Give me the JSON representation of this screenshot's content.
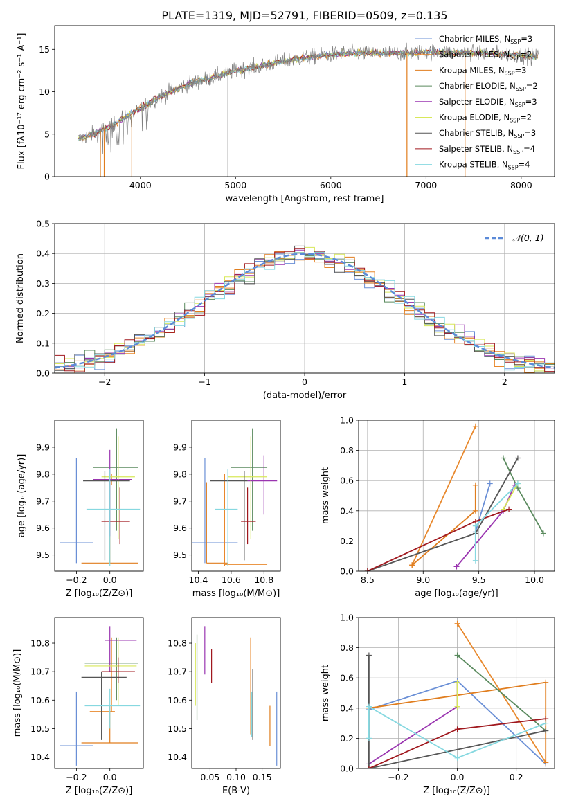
{
  "figure": {
    "title": "PLATE=1319, MJD=52791, FIBERID=0509, z=0.135"
  },
  "models": [
    {
      "name": "Chabrier MILES",
      "nssp": "3",
      "color": "#6a8fd6"
    },
    {
      "name": "Salpeter MILES",
      "nssp": "2",
      "color": "#e8882c"
    },
    {
      "name": "Kroupa MILES",
      "nssp": "3",
      "color": "#e07d1e"
    },
    {
      "name": "Chabrier ELODIE",
      "nssp": "2",
      "color": "#5a8a5e"
    },
    {
      "name": "Salpeter ELODIE",
      "nssp": "3",
      "color": "#9a35b0"
    },
    {
      "name": "Kroupa ELODIE",
      "nssp": "2",
      "color": "#d8e85a"
    },
    {
      "name": "Chabrier STELIB",
      "nssp": "3",
      "color": "#555555"
    },
    {
      "name": "Salpeter STELIB",
      "nssp": "4",
      "color": "#a0181e"
    },
    {
      "name": "Kroupa STELIB",
      "nssp": "4",
      "color": "#86d8e0"
    }
  ],
  "chart_data": [
    {
      "id": "spectrum",
      "type": "line",
      "xlabel": "wavelength [Angstrom, rest frame]",
      "ylabel": "Flux [fλ10⁻¹⁷ erg cm⁻² s⁻¹ A⁻¹]",
      "xlim": [
        3100,
        8350
      ],
      "ylim": [
        0,
        17.8
      ],
      "xticks": [
        4000,
        5000,
        6000,
        7000,
        8000
      ],
      "yticks": [
        0,
        5,
        10,
        15
      ],
      "continuum": {
        "x": [
          3350,
          3500,
          3700,
          3900,
          4000,
          4200,
          4500,
          4800,
          5000,
          5300,
          5600,
          6000,
          6300,
          6600,
          7000,
          7300,
          7600,
          8000,
          8180
        ],
        "y": [
          4.4,
          5.0,
          6.0,
          7.4,
          8.0,
          9.4,
          10.9,
          11.8,
          12.5,
          13.1,
          13.8,
          14.4,
          14.6,
          14.5,
          14.7,
          14.6,
          14.6,
          14.3,
          14.1
        ]
      },
      "dips": [
        {
          "x": 3580,
          "y": 0
        },
        {
          "x": 3620,
          "y": 0
        },
        {
          "x": 3910,
          "y": 0
        },
        {
          "x": 4920,
          "y": 0
        },
        {
          "x": 6800,
          "y": 0
        },
        {
          "x": 7410,
          "y": 0
        }
      ],
      "legend_position": "top-right"
    },
    {
      "id": "residual-histogram",
      "type": "line",
      "xlabel": "(data-model)/error",
      "ylabel": "Normed distribution",
      "xlim": [
        -2.5,
        2.5
      ],
      "ylim": [
        0,
        0.5
      ],
      "xticks": [
        -2,
        -1,
        0,
        1,
        2
      ],
      "yticks": [
        0.0,
        0.1,
        0.2,
        0.3,
        0.4,
        0.5
      ],
      "reference": {
        "name": "𝒩(0, 1)",
        "mu": 0,
        "sigma": 1,
        "color": "#5b8ad8"
      },
      "bin_width": 0.1,
      "grid": true,
      "legend_position": "top-right"
    },
    {
      "id": "age-vs-Z",
      "type": "scatter",
      "xlabel": "Z [log₁₀(Z/Z⊙)]",
      "ylabel": "age  [log₁₀(age/yr)]",
      "xlim": [
        -0.33,
        0.2
      ],
      "ylim": [
        9.44,
        10.0
      ],
      "xticks": [
        -0.2,
        0.0
      ],
      "xticklabels": [
        "−0.2",
        "0.0"
      ],
      "yticks": [
        9.5,
        9.6,
        9.7,
        9.8,
        9.9
      ],
      "points": [
        {
          "x": -0.2,
          "xlo": -0.3,
          "xhi": -0.1,
          "y": 9.545,
          "ylo": 9.47,
          "yhi": 9.86,
          "model": 0
        },
        {
          "x": 0.0,
          "xlo": -0.17,
          "xhi": 0.17,
          "y": 9.47,
          "ylo": 9.47,
          "yhi": 9.77,
          "model": 2
        },
        {
          "x": 0.01,
          "xlo": -0.02,
          "xhi": 0.04,
          "y": 9.78,
          "ylo": 9.76,
          "yhi": 9.8,
          "model": 1
        },
        {
          "x": 0.04,
          "xlo": -0.1,
          "xhi": 0.17,
          "y": 9.825,
          "ylo": 9.59,
          "yhi": 9.97,
          "model": 3
        },
        {
          "x": 0.0,
          "xlo": -0.1,
          "xhi": 0.13,
          "y": 9.78,
          "ylo": 9.57,
          "yhi": 9.89,
          "model": 4
        },
        {
          "x": 0.05,
          "xlo": -0.05,
          "xhi": 0.15,
          "y": 9.79,
          "ylo": 9.56,
          "yhi": 9.94,
          "model": 5
        },
        {
          "x": -0.03,
          "xlo": -0.16,
          "xhi": 0.12,
          "y": 9.775,
          "ylo": 9.48,
          "yhi": 9.81,
          "model": 6
        },
        {
          "x": 0.06,
          "xlo": -0.05,
          "xhi": 0.12,
          "y": 9.625,
          "ylo": 9.54,
          "yhi": 9.75,
          "model": 7
        },
        {
          "x": 0.0,
          "xlo": -0.14,
          "xhi": 0.18,
          "y": 9.67,
          "ylo": 9.46,
          "yhi": 9.82,
          "model": 8
        }
      ]
    },
    {
      "id": "age-vs-mass",
      "type": "scatter",
      "xlabel": "mass [log₁₀(M/M⊙)]",
      "ylabel": "",
      "xlim": [
        10.36,
        10.9
      ],
      "ylim": [
        9.44,
        10.0
      ],
      "xticks": [
        10.4,
        10.6,
        10.8
      ],
      "yticks": [
        9.5,
        9.6,
        9.7,
        9.8,
        9.9
      ],
      "points": [
        {
          "x": 10.44,
          "xlo": 10.36,
          "xhi": 10.64,
          "y": 9.545,
          "ylo": 9.47,
          "yhi": 9.86,
          "model": 0
        },
        {
          "x": 10.45,
          "xlo": 10.45,
          "xhi": 10.58,
          "y": 9.47,
          "ylo": 9.47,
          "yhi": 9.77,
          "model": 2
        },
        {
          "x": 10.56,
          "xlo": 10.56,
          "xhi": 10.82,
          "y": 9.465,
          "ylo": 9.46,
          "yhi": 9.8,
          "model": 1
        },
        {
          "x": 10.73,
          "xlo": 10.6,
          "xhi": 10.82,
          "y": 9.825,
          "ylo": 9.59,
          "yhi": 9.97,
          "model": 3
        },
        {
          "x": 10.8,
          "xlo": 10.7,
          "xhi": 10.88,
          "y": 9.775,
          "ylo": 9.65,
          "yhi": 9.87,
          "model": 4
        },
        {
          "x": 10.72,
          "xlo": 10.58,
          "xhi": 10.82,
          "y": 9.79,
          "ylo": 9.56,
          "yhi": 9.94,
          "model": 5
        },
        {
          "x": 10.68,
          "xlo": 10.47,
          "xhi": 10.7,
          "y": 9.775,
          "ylo": 9.48,
          "yhi": 9.81,
          "model": 6
        },
        {
          "x": 10.7,
          "xlo": 10.66,
          "xhi": 10.75,
          "y": 9.625,
          "ylo": 9.54,
          "yhi": 9.75,
          "model": 7
        },
        {
          "x": 10.58,
          "xlo": 10.5,
          "xhi": 10.64,
          "y": 9.67,
          "ylo": 9.46,
          "yhi": 9.82,
          "model": 8
        }
      ]
    },
    {
      "id": "mass-weight-vs-age",
      "type": "line",
      "xlabel": "age  [log₁₀(age/yr)]",
      "ylabel": "mass weight",
      "xlim": [
        8.42,
        10.18
      ],
      "ylim": [
        0,
        1
      ],
      "xticks": [
        8.5,
        9.0,
        9.5,
        10.0
      ],
      "yticks": [
        0.0,
        0.2,
        0.4,
        0.6,
        0.8,
        1.0
      ],
      "grid": true,
      "series": [
        {
          "model": 0,
          "x": [
            9.47,
            9.6
          ],
          "y": [
            0.26,
            0.58
          ]
        },
        {
          "model": 1,
          "x": [
            8.9,
            9.47
          ],
          "y": [
            0.04,
            0.96
          ]
        },
        {
          "model": 2,
          "x": [
            8.9,
            9.47,
            9.47
          ],
          "y": [
            0.04,
            0.4,
            0.57
          ]
        },
        {
          "model": 3,
          "x": [
            9.72,
            9.85,
            10.08
          ],
          "y": [
            0.75,
            0.55,
            0.25
          ]
        },
        {
          "model": 4,
          "x": [
            9.3,
            9.72,
            9.82
          ],
          "y": [
            0.03,
            0.4,
            0.57
          ]
        },
        {
          "model": 5,
          "x": [
            9.72,
            9.85
          ],
          "y": [
            0.41,
            0.58
          ]
        },
        {
          "model": 6,
          "x": [
            8.5,
            9.47,
            9.85
          ],
          "y": [
            0.0,
            0.25,
            0.75
          ]
        },
        {
          "model": 7,
          "x": [
            8.5,
            9.47,
            9.77
          ],
          "y": [
            0.0,
            0.33,
            0.41
          ]
        },
        {
          "model": 8,
          "x": [
            9.47,
            9.47,
            9.85
          ],
          "y": [
            0.07,
            0.3,
            0.58
          ]
        }
      ]
    },
    {
      "id": "mass-vs-Z",
      "type": "scatter",
      "xlabel": "Z [log₁₀(Z/Z⊙)]",
      "ylabel": "mass [log₁₀(M/M⊙)]",
      "xlim": [
        -0.33,
        0.2
      ],
      "ylim": [
        10.36,
        10.89
      ],
      "xticks": [
        -0.2,
        0.0
      ],
      "xticklabels": [
        "−0.2",
        "0.0"
      ],
      "yticks": [
        10.4,
        10.5,
        10.6,
        10.7,
        10.8
      ],
      "points": [
        {
          "x": -0.2,
          "xlo": -0.3,
          "xhi": -0.1,
          "y": 10.44,
          "ylo": 10.37,
          "yhi": 10.63,
          "model": 0
        },
        {
          "x": 0.0,
          "xlo": -0.17,
          "xhi": 0.17,
          "y": 10.45,
          "ylo": 10.45,
          "yhi": 10.58,
          "model": 2
        },
        {
          "x": 0.01,
          "xlo": -0.12,
          "xhi": 0.03,
          "y": 10.56,
          "ylo": 10.56,
          "yhi": 10.82,
          "model": 1
        },
        {
          "x": 0.04,
          "xlo": -0.15,
          "xhi": 0.17,
          "y": 10.73,
          "ylo": 10.6,
          "yhi": 10.82,
          "model": 3
        },
        {
          "x": 0.0,
          "xlo": -0.03,
          "xhi": 0.16,
          "y": 10.81,
          "ylo": 10.7,
          "yhi": 10.86,
          "model": 4
        },
        {
          "x": 0.05,
          "xlo": -0.15,
          "xhi": 0.16,
          "y": 10.72,
          "ylo": 10.58,
          "yhi": 10.82,
          "model": 5
        },
        {
          "x": -0.05,
          "xlo": -0.17,
          "xhi": 0.1,
          "y": 10.68,
          "ylo": 10.46,
          "yhi": 10.7,
          "model": 6
        },
        {
          "x": 0.05,
          "xlo": -0.05,
          "xhi": 0.15,
          "y": 10.7,
          "ylo": 10.66,
          "yhi": 10.75,
          "model": 7
        },
        {
          "x": 0.0,
          "xlo": -0.15,
          "xhi": 0.18,
          "y": 10.58,
          "ylo": 10.5,
          "yhi": 10.64,
          "model": 8
        }
      ]
    },
    {
      "id": "mass-vs-ebv",
      "type": "scatter",
      "xlabel": "E(B-V)",
      "ylabel": "",
      "xlim": [
        0.015,
        0.185
      ],
      "ylim": [
        10.36,
        10.89
      ],
      "xticks": [
        0.05,
        0.1,
        0.15
      ],
      "xticklabels": [
        "0.05",
        "0.10",
        "0.15"
      ],
      "yticks": [
        10.4,
        10.5,
        10.6,
        10.7,
        10.8
      ],
      "points": [
        {
          "x": 0.178,
          "y": 10.44,
          "ylo": 10.37,
          "yhi": 10.63,
          "model": 0
        },
        {
          "x": 0.165,
          "y": 10.45,
          "ylo": 10.44,
          "yhi": 10.58,
          "model": 2
        },
        {
          "x": 0.128,
          "y": 10.56,
          "ylo": 10.48,
          "yhi": 10.82,
          "model": 1
        },
        {
          "x": 0.025,
          "y": 10.73,
          "ylo": 10.53,
          "yhi": 10.83,
          "model": 3
        },
        {
          "x": 0.04,
          "y": 10.81,
          "ylo": 10.69,
          "yhi": 10.86,
          "model": 4
        },
        {
          "x": 0.022,
          "y": 10.72,
          "ylo": 10.58,
          "yhi": 10.8,
          "model": 5
        },
        {
          "x": 0.132,
          "y": 10.68,
          "ylo": 10.46,
          "yhi": 10.71,
          "model": 6
        },
        {
          "x": 0.053,
          "y": 10.7,
          "ylo": 10.66,
          "yhi": 10.78,
          "model": 7
        },
        {
          "x": 0.13,
          "y": 10.58,
          "ylo": 10.47,
          "yhi": 10.63,
          "model": 8
        }
      ]
    },
    {
      "id": "mass-weight-vs-Z",
      "type": "line",
      "xlabel": "Z [log₁₀(Z/Z⊙)]",
      "ylabel": "mass weight",
      "xlim": [
        -0.335,
        0.33
      ],
      "ylim": [
        0,
        1
      ],
      "xticks": [
        -0.2,
        0.0,
        0.2
      ],
      "xticklabels": [
        "−0.2",
        "0.0",
        "0.2"
      ],
      "yticks": [
        0.0,
        0.2,
        0.4,
        0.6,
        0.8,
        1.0
      ],
      "grid": true,
      "series": [
        {
          "model": 0,
          "x": [
            -0.3,
            0.0,
            0.3
          ],
          "y": [
            0.39,
            0.58,
            0.03
          ]
        },
        {
          "model": 1,
          "x": [
            0.0,
            0.3
          ],
          "y": [
            0.96,
            0.04
          ]
        },
        {
          "model": 2,
          "x": [
            -0.3,
            0.3,
            0.3
          ],
          "y": [
            0.4,
            0.57,
            0.04
          ]
        },
        {
          "model": 3,
          "x": [
            0.0,
            0.3
          ],
          "y": [
            0.75,
            0.25
          ]
        },
        {
          "model": 4,
          "x": [
            -0.3,
            0.0,
            0.0
          ],
          "y": [
            0.03,
            0.41,
            0.57
          ]
        },
        {
          "model": 5,
          "x": [
            0.0,
            0.0
          ],
          "y": [
            0.41,
            0.57
          ]
        },
        {
          "model": 6,
          "x": [
            -0.3,
            -0.3,
            0.3
          ],
          "y": [
            0.75,
            0.0,
            0.25
          ]
        },
        {
          "model": 7,
          "x": [
            -0.3,
            0.0,
            0.3
          ],
          "y": [
            0.0,
            0.26,
            0.33
          ]
        },
        {
          "model": 8,
          "x": [
            -0.3,
            -0.3,
            0.0,
            0.3
          ],
          "y": [
            0.2,
            0.41,
            0.07,
            0.3
          ]
        }
      ]
    }
  ]
}
